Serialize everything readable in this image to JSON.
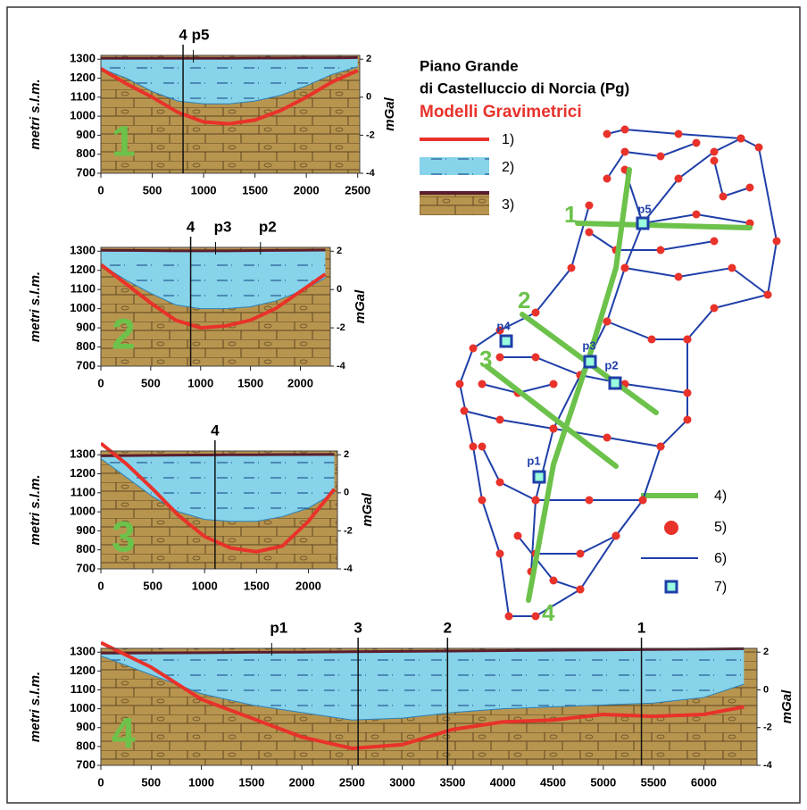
{
  "chart_data": [
    {
      "type": "line",
      "label": "1",
      "ylabel": "metri s.l.m.",
      "y2label": "mGal",
      "x": [
        0,
        250,
        500,
        750,
        1000,
        1250,
        1500,
        1750,
        2000,
        2250,
        2500
      ],
      "xlim": [
        0,
        2520
      ],
      "xticks": [
        0,
        500,
        1000,
        1500,
        2000,
        2500
      ],
      "ylim": [
        700,
        1320
      ],
      "yticks": [
        700,
        800,
        900,
        1000,
        1100,
        1200,
        1300
      ],
      "y2lim": [
        -4,
        2.2
      ],
      "y2ticks": [
        -4,
        -2,
        0,
        2
      ],
      "annotations": [
        {
          "text": "4",
          "x": 800
        },
        {
          "text": "p5",
          "x": 900
        }
      ],
      "series": [
        {
          "color": "#5a1e2e",
          "values": [
            1305,
            1305,
            1305,
            1305,
            1305,
            1305,
            1306,
            1306,
            1307,
            1307,
            1308
          ]
        },
        {
          "color": "#2b7fb8",
          "values": [
            1250,
            1200,
            1130,
            1080,
            1065,
            1065,
            1080,
            1110,
            1160,
            1220,
            1260
          ]
        },
        {
          "color": "#e8322a",
          "axis": "y2",
          "values": [
            1.5,
            0.7,
            0,
            -0.8,
            -1.3,
            -1.4,
            -1.2,
            -0.7,
            0,
            0.8,
            1.4
          ]
        }
      ]
    },
    {
      "type": "line",
      "label": "2",
      "ylabel": "metri s.l.m.",
      "y2label": "mGal",
      "x": [
        0,
        250,
        500,
        750,
        1000,
        1250,
        1500,
        1750,
        2000,
        2250
      ],
      "xlim": [
        0,
        2300
      ],
      "xticks": [
        0,
        500,
        1000,
        1500,
        2000
      ],
      "ylim": [
        700,
        1320
      ],
      "yticks": [
        700,
        800,
        900,
        1000,
        1100,
        1200,
        1300
      ],
      "y2lim": [
        -4,
        2.2
      ],
      "y2ticks": [
        -4,
        -2,
        0,
        2
      ],
      "annotations": [
        {
          "text": "4",
          "x": 900
        },
        {
          "text": "p3",
          "x": 1150
        },
        {
          "text": "p2",
          "x": 1600
        }
      ],
      "series": [
        {
          "color": "#5a1e2e",
          "values": [
            1305,
            1304,
            1303,
            1302,
            1302,
            1302,
            1303,
            1304,
            1305,
            1306
          ]
        },
        {
          "color": "#2b7fb8",
          "values": [
            1230,
            1150,
            1080,
            1020,
            1000,
            1000,
            1010,
            1040,
            1090,
            1160
          ]
        },
        {
          "color": "#e8322a",
          "axis": "y2",
          "values": [
            1.3,
            0.3,
            -0.7,
            -1.6,
            -2,
            -1.9,
            -1.6,
            -1,
            -0.1,
            0.8
          ]
        }
      ]
    },
    {
      "type": "line",
      "label": "3",
      "ylabel": "metri s.l.m.",
      "y2label": "mGal",
      "x": [
        0,
        250,
        500,
        750,
        1000,
        1250,
        1500,
        1750,
        2000,
        2250
      ],
      "xlim": [
        0,
        2280
      ],
      "xticks": [
        0,
        500,
        1000,
        1500,
        2000
      ],
      "ylim": [
        700,
        1320
      ],
      "yticks": [
        700,
        800,
        900,
        1000,
        1100,
        1200,
        1300
      ],
      "y2lim": [
        -4,
        2.2
      ],
      "y2ticks": [
        -4,
        -2,
        0,
        2
      ],
      "annotations": [
        {
          "text": "4",
          "x": 1100
        }
      ],
      "series": [
        {
          "color": "#5a1e2e",
          "values": [
            1295,
            1296,
            1297,
            1298,
            1299,
            1300,
            1300,
            1301,
            1301,
            1302
          ]
        },
        {
          "color": "#2b7fb8",
          "values": [
            1280,
            1180,
            1080,
            1000,
            960,
            950,
            950,
            975,
            1020,
            1100
          ]
        },
        {
          "color": "#e8322a",
          "axis": "y2",
          "values": [
            2.6,
            1.5,
            0.2,
            -1.2,
            -2.3,
            -2.9,
            -3.1,
            -2.8,
            -1.5,
            0.2
          ]
        }
      ]
    },
    {
      "type": "line",
      "label": "4",
      "ylabel": "metri s.l.m.",
      "y2label": "mGal",
      "x": [
        0,
        500,
        1000,
        1500,
        2000,
        2500,
        3000,
        3500,
        4000,
        4500,
        5000,
        5500,
        6000,
        6400
      ],
      "xlim": [
        0,
        6530
      ],
      "xticks": [
        0,
        500,
        1000,
        1500,
        2000,
        2500,
        3000,
        3500,
        4000,
        4500,
        5000,
        5500,
        6000
      ],
      "ylim": [
        700,
        1320
      ],
      "yticks": [
        700,
        800,
        900,
        1000,
        1100,
        1200,
        1300
      ],
      "y2lim": [
        -4,
        2.2
      ],
      "y2ticks": [
        -4,
        -2,
        0,
        2
      ],
      "annotations": [
        {
          "text": "p1",
          "x": 1700
        },
        {
          "text": "3",
          "x": 2560
        },
        {
          "text": "2",
          "x": 3450
        },
        {
          "text": "1",
          "x": 5380
        }
      ],
      "series": [
        {
          "color": "#5a1e2e",
          "values": [
            1295,
            1296,
            1297,
            1299,
            1300,
            1302,
            1304,
            1306,
            1308,
            1310,
            1312,
            1314,
            1316,
            1318
          ]
        },
        {
          "color": "#2b7fb8",
          "values": [
            1280,
            1180,
            1080,
            1020,
            980,
            940,
            950,
            980,
            1000,
            1010,
            1020,
            1030,
            1060,
            1130
          ]
        },
        {
          "color": "#e8322a",
          "axis": "y2",
          "values": [
            2.5,
            1.2,
            -0.5,
            -1.5,
            -2.5,
            -3.1,
            -2.9,
            -2.1,
            -1.7,
            -1.6,
            -1.3,
            -1.4,
            -1.3,
            -0.9
          ]
        }
      ]
    }
  ],
  "header": {
    "line1": "Piano Grande",
    "line2": "di Castelluccio di Norcia (Pg)",
    "line3": "Modelli Gravimetrici"
  },
  "legend": [
    "1)",
    "2)",
    "3)",
    "4)",
    "5)",
    "6)",
    "7)"
  ],
  "map": {
    "profiles": [
      "1",
      "2",
      "3",
      "4"
    ],
    "points": [
      "p1",
      "p2",
      "p3",
      "p4",
      "p5"
    ]
  }
}
